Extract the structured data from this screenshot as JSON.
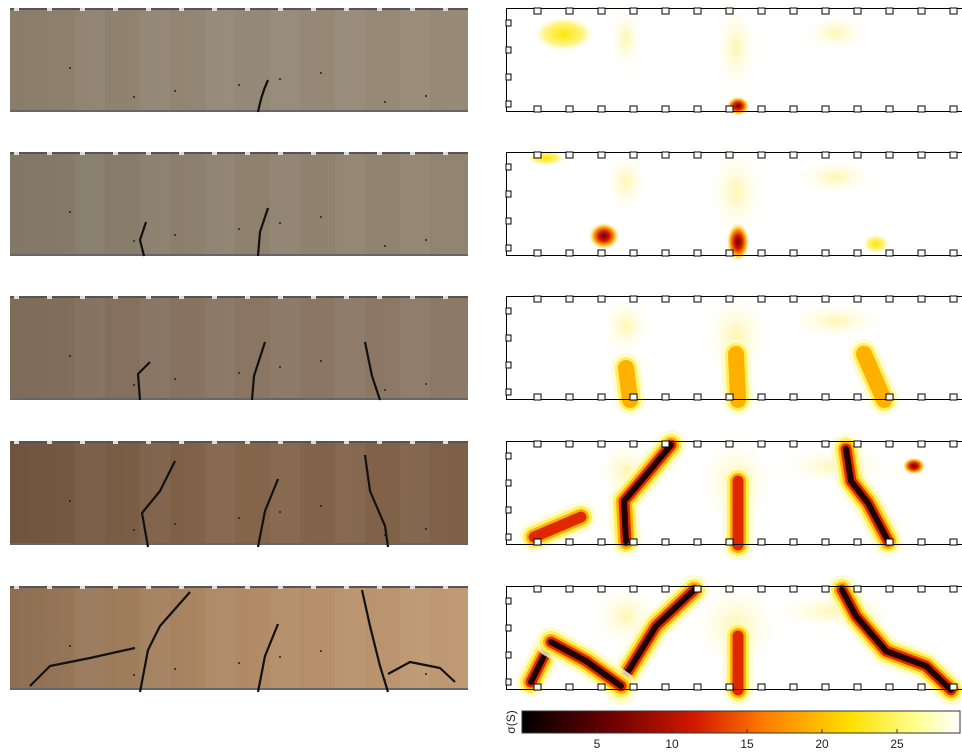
{
  "colorbar": {
    "label": "σ(S)",
    "lim": [
      0,
      29.2
    ],
    "ticks": [
      5,
      10,
      15,
      20,
      25
    ]
  }
}
